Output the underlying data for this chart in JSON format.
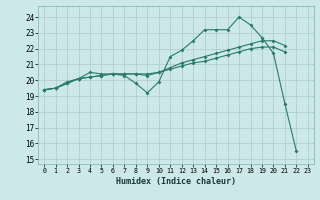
{
  "xlabel": "Humidex (Indice chaleur)",
  "bg_color": "#cce8e8",
  "grid_color": "#aacccc",
  "line_color": "#2a7a6a",
  "xlim_min": -0.5,
  "xlim_max": 23.5,
  "ylim_min": 14.7,
  "ylim_max": 24.7,
  "yticks": [
    15,
    16,
    17,
    18,
    19,
    20,
    21,
    22,
    23,
    24
  ],
  "xticks": [
    0,
    1,
    2,
    3,
    4,
    5,
    6,
    7,
    8,
    9,
    10,
    11,
    12,
    13,
    14,
    15,
    16,
    17,
    18,
    19,
    20,
    21,
    22,
    23
  ],
  "line1_x": [
    0,
    1,
    2,
    3,
    4,
    5,
    6,
    7,
    8,
    9,
    10,
    11,
    12,
    13,
    14,
    15,
    16,
    17,
    18,
    19,
    20,
    21,
    22
  ],
  "line1_y": [
    19.4,
    19.5,
    19.9,
    20.1,
    20.5,
    20.4,
    20.4,
    20.3,
    19.8,
    19.2,
    19.9,
    21.5,
    21.9,
    22.5,
    23.2,
    23.2,
    23.2,
    24.0,
    23.5,
    22.7,
    21.7,
    18.5,
    15.5
  ],
  "line2_x": [
    0,
    1,
    2,
    3,
    4,
    5,
    6,
    7,
    8,
    9,
    10,
    11,
    12,
    13,
    14,
    15,
    16,
    17,
    18,
    19,
    20,
    21
  ],
  "line2_y": [
    19.4,
    19.5,
    19.8,
    20.1,
    20.2,
    20.3,
    20.4,
    20.4,
    20.4,
    20.3,
    20.5,
    20.8,
    21.1,
    21.3,
    21.5,
    21.7,
    21.9,
    22.1,
    22.3,
    22.5,
    22.5,
    22.2
  ],
  "line3_x": [
    0,
    1,
    2,
    3,
    4,
    5,
    6,
    7,
    8,
    9,
    10,
    11,
    12,
    13,
    14,
    15,
    16,
    17,
    18,
    19,
    20,
    21
  ],
  "line3_y": [
    19.4,
    19.5,
    19.8,
    20.1,
    20.2,
    20.3,
    20.4,
    20.4,
    20.4,
    20.4,
    20.5,
    20.7,
    20.9,
    21.1,
    21.2,
    21.4,
    21.6,
    21.8,
    22.0,
    22.1,
    22.1,
    21.8
  ]
}
